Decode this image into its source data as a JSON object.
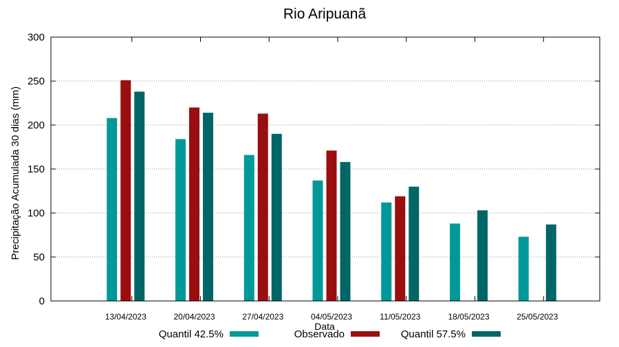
{
  "chart_data": {
    "type": "bar",
    "title": "Rio Aripuanã",
    "xlabel": "Data",
    "ylabel": "Precipitação Acumulada 30 dias (mm)",
    "ylim": [
      0,
      300
    ],
    "yticks": [
      0,
      50,
      100,
      150,
      200,
      250,
      300
    ],
    "grid": true,
    "legend_position": "bottom",
    "categories": [
      "13/04/2023",
      "20/04/2023",
      "27/04/2023",
      "04/05/2023",
      "11/05/2023",
      "18/05/2023",
      "25/05/2023"
    ],
    "series": [
      {
        "name": "Quantil 42.5%",
        "color": "#009999",
        "values": [
          208,
          184,
          166,
          137,
          112,
          88,
          73
        ]
      },
      {
        "name": "Observado",
        "color": "#990f0f",
        "values": [
          251,
          220,
          213,
          171,
          119,
          null,
          null
        ]
      },
      {
        "name": "Quantil 57.5%",
        "color": "#006666",
        "values": [
          238,
          214,
          190,
          158,
          130,
          103,
          87
        ]
      }
    ]
  }
}
